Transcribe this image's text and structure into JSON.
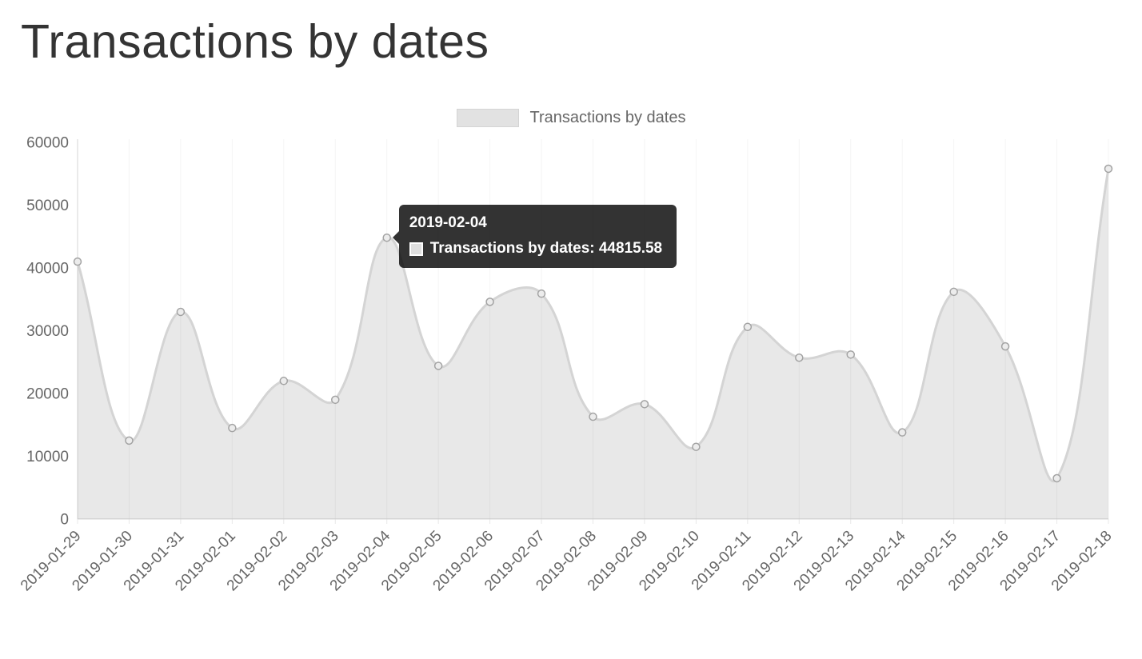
{
  "page": {
    "title": "Transactions by dates"
  },
  "legend": {
    "label": "Transactions by dates"
  },
  "tooltip": {
    "title": "2019-02-04",
    "series_label": "Transactions by dates",
    "value": "44815.58",
    "label": "Transactions by dates: 44815.58",
    "background": "rgba(0,0,0,0.8)"
  },
  "chart_data": {
    "type": "area",
    "title": "Transactions by dates",
    "xlabel": "",
    "ylabel": "",
    "ylim": [
      0,
      60000
    ],
    "yticks": [
      0,
      10000,
      20000,
      30000,
      40000,
      50000,
      60000
    ],
    "grid": "vertical",
    "legend_position": "top",
    "x_tick_rotation": 45,
    "x": [
      "2019-01-29",
      "2019-01-30",
      "2019-01-31",
      "2019-02-01",
      "2019-02-02",
      "2019-02-03",
      "2019-02-04",
      "2019-02-05",
      "2019-02-06",
      "2019-02-07",
      "2019-02-08",
      "2019-02-09",
      "2019-02-10",
      "2019-02-11",
      "2019-02-12",
      "2019-02-13",
      "2019-02-14",
      "2019-02-15",
      "2019-02-16",
      "2019-02-17",
      "2019-02-18"
    ],
    "series": [
      {
        "name": "Transactions by dates",
        "values": [
          41000,
          12500,
          33000,
          14500,
          22000,
          19000,
          44815.58,
          24400,
          34600,
          35900,
          16300,
          18300,
          11500,
          30600,
          25700,
          26200,
          13800,
          36200,
          27500,
          6500,
          55800
        ]
      }
    ],
    "highlight": {
      "x": "2019-02-04",
      "value": 44815.58
    },
    "colors": {
      "fill": "rgba(0,0,0,0.09)",
      "line": "#d4d4d4",
      "point_fill": "#ececec",
      "point_stroke": "#a3a3a3",
      "axis": "#d6d6d6",
      "gridline": "rgba(0,0,0,0.045)",
      "tick_text": "#666666"
    }
  }
}
